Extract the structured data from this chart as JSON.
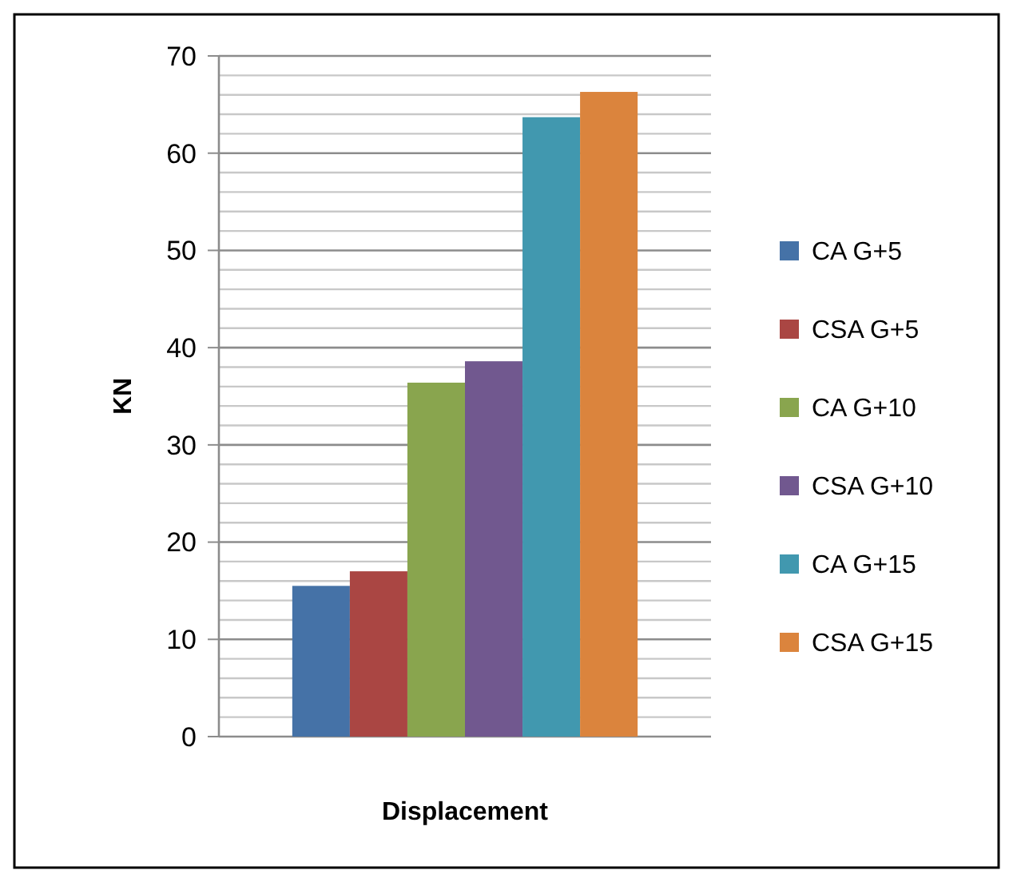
{
  "chart_data": {
    "type": "bar",
    "xlabel": "Displacement",
    "ylabel": "KN",
    "categories": [
      null
    ],
    "series": [
      {
        "name": "CA G+5",
        "color": "#4572a7",
        "values": [
          15.5
        ]
      },
      {
        "name": "CSA G+5",
        "color": "#aa4643",
        "values": [
          17
        ]
      },
      {
        "name": "CA G+10",
        "color": "#89a54e",
        "values": [
          36.4
        ]
      },
      {
        "name": "CSA G+10",
        "color": "#71588f",
        "values": [
          38.6
        ]
      },
      {
        "name": "CA G+15",
        "color": "#4198af",
        "values": [
          63.7
        ]
      },
      {
        "name": "CSA G+15",
        "color": "#db843d",
        "values": [
          66.3
        ]
      }
    ],
    "ylim": [
      0,
      70
    ],
    "yticks": [
      0,
      {
        "value": 2,
        "label": null
      },
      {
        "value": 4,
        "label": null
      },
      {
        "value": 6,
        "label": null
      },
      {
        "value": 8,
        "label": null
      },
      10,
      {
        "value": 12,
        "label": null
      },
      {
        "value": 14,
        "label": null
      },
      {
        "value": 16,
        "label": null
      },
      {
        "value": 18,
        "label": null
      },
      20,
      {
        "value": 22,
        "label": null
      },
      {
        "value": 24,
        "label": null
      },
      {
        "value": 26,
        "label": null
      },
      {
        "value": 28,
        "label": null
      },
      30,
      {
        "value": 32,
        "label": null
      },
      {
        "value": 34,
        "label": null
      },
      {
        "value": 36,
        "label": null
      },
      {
        "value": 38,
        "label": null
      },
      40,
      {
        "value": 42,
        "label": null
      },
      {
        "value": 44,
        "label": null
      },
      {
        "value": 46,
        "label": null
      },
      {
        "value": 48,
        "label": null
      },
      50,
      {
        "value": 52,
        "label": null
      },
      {
        "value": 54,
        "label": null
      },
      {
        "value": 56,
        "label": null
      },
      {
        "value": 58,
        "label": null
      },
      60,
      {
        "value": 62,
        "label": null
      },
      {
        "value": 64,
        "label": null
      },
      {
        "value": 66,
        "label": null
      },
      {
        "value": 68,
        "label": null
      },
      70
    ],
    "grid": true,
    "legend": "right"
  }
}
